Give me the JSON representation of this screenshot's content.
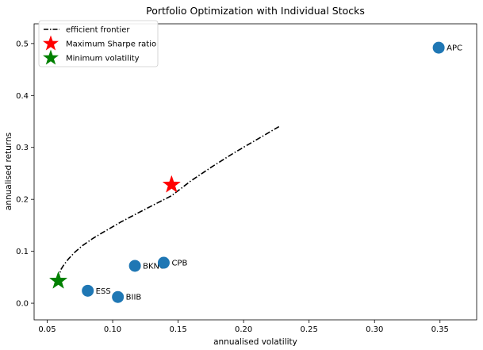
{
  "chart_data": {
    "type": "scatter",
    "title": "Portfolio Optimization with Individual Stocks",
    "xlabel": "annualised volatility",
    "ylabel": "annualised returns",
    "xlim": [
      0.04,
      0.378
    ],
    "ylim": [
      -0.032,
      0.538
    ],
    "xticks": [
      0.05,
      0.1,
      0.15,
      0.2,
      0.25,
      0.3,
      0.35
    ],
    "xtick_labels": [
      "0.05",
      "0.10",
      "0.15",
      "0.20",
      "0.25",
      "0.30",
      "0.35"
    ],
    "yticks": [
      0.0,
      0.1,
      0.2,
      0.3,
      0.4,
      0.5
    ],
    "ytick_labels": [
      "0.0",
      "0.1",
      "0.2",
      "0.3",
      "0.4",
      "0.5"
    ],
    "grid": false,
    "legend_position": "top-left",
    "stocks": [
      {
        "name": "APC",
        "x": 0.349,
        "y": 0.492
      },
      {
        "name": "BKNG",
        "x": 0.117,
        "y": 0.072
      },
      {
        "name": "CPB",
        "x": 0.139,
        "y": 0.078
      },
      {
        "name": "ESS",
        "x": 0.081,
        "y": 0.024
      },
      {
        "name": "BIIB",
        "x": 0.104,
        "y": 0.012
      }
    ],
    "efficient_frontier": {
      "name": "efficient frontier",
      "style": "dash-dot",
      "x": [
        0.0585,
        0.0592,
        0.0605,
        0.063,
        0.0665,
        0.071,
        0.077,
        0.085,
        0.095,
        0.106,
        0.118,
        0.131,
        0.145,
        0.16,
        0.176,
        0.193,
        0.21,
        0.227
      ],
      "y": [
        0.045,
        0.055,
        0.065,
        0.075,
        0.086,
        0.098,
        0.111,
        0.125,
        0.14,
        0.156,
        0.172,
        0.189,
        0.207,
        0.236,
        0.263,
        0.29,
        0.315,
        0.34
      ]
    },
    "max_sharpe": {
      "name": "Maximum Sharpe ratio",
      "x": 0.145,
      "y": 0.228
    },
    "min_volatility": {
      "name": "Minimum volatility",
      "x": 0.0585,
      "y": 0.043
    },
    "colors": {
      "stock": "#1f77b4",
      "frontier": "#000000",
      "max_sharpe": "#ff0000",
      "min_volatility": "#008000"
    }
  }
}
